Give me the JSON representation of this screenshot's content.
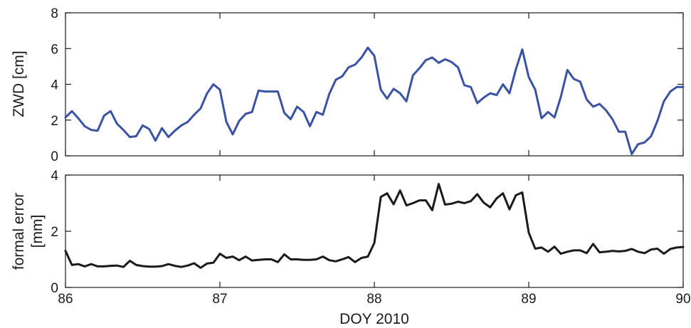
{
  "chart_data": [
    {
      "type": "line",
      "ylabel": "ZWD [cm]",
      "xlabel": "",
      "xlim": [
        86,
        90
      ],
      "ylim": [
        0,
        8
      ],
      "xticks": [
        86,
        87,
        88,
        89,
        90
      ],
      "xtick_labels_visible": false,
      "yticks": [
        "0",
        "2",
        "4",
        "6",
        "8"
      ],
      "grid": false,
      "color": "#3a52a4",
      "series": [
        {
          "x": [
            86.0,
            86.042,
            86.083,
            86.125,
            86.167,
            86.208,
            86.25,
            86.292,
            86.333,
            86.375,
            86.417,
            86.458,
            86.5,
            86.542,
            86.583,
            86.625,
            86.667,
            86.708,
            86.75,
            86.792,
            86.833,
            86.875,
            86.917,
            86.958,
            87.0,
            87.042,
            87.083,
            87.125,
            87.167,
            87.208,
            87.25,
            87.292,
            87.333,
            87.375,
            87.417,
            87.458,
            87.5,
            87.542,
            87.583,
            87.625,
            87.667,
            87.708,
            87.75,
            87.792,
            87.833,
            87.875,
            87.917,
            87.958,
            88.0,
            88.042,
            88.083,
            88.125,
            88.167,
            88.208,
            88.25,
            88.292,
            88.333,
            88.375,
            88.417,
            88.458,
            88.5,
            88.542,
            88.583,
            88.625,
            88.667,
            88.708,
            88.75,
            88.792,
            88.833,
            88.875,
            88.917,
            88.958,
            89.0,
            89.042,
            89.083,
            89.125,
            89.167,
            89.208,
            89.25,
            89.292,
            89.333,
            89.375,
            89.417,
            89.458,
            89.5,
            89.542,
            89.583,
            89.625,
            89.667,
            89.708,
            89.75,
            89.792,
            89.833,
            89.875,
            89.917,
            89.958,
            90.0
          ],
          "values": [
            2.15,
            2.5,
            2.1,
            1.65,
            1.45,
            1.4,
            2.25,
            2.5,
            1.8,
            1.45,
            1.05,
            1.1,
            1.7,
            1.5,
            0.85,
            1.55,
            1.05,
            1.4,
            1.7,
            1.9,
            2.3,
            2.65,
            3.5,
            4.0,
            3.7,
            1.9,
            1.2,
            1.95,
            2.35,
            2.45,
            3.65,
            3.6,
            3.6,
            3.6,
            2.4,
            2.05,
            2.75,
            2.45,
            1.65,
            2.45,
            2.3,
            3.45,
            4.25,
            4.45,
            4.95,
            5.1,
            5.5,
            6.05,
            5.6,
            3.7,
            3.2,
            3.75,
            3.5,
            3.05,
            4.5,
            4.9,
            5.35,
            5.5,
            5.2,
            5.4,
            5.25,
            4.95,
            3.95,
            3.85,
            2.95,
            3.25,
            3.5,
            3.4,
            4.0,
            3.5,
            4.85,
            5.95,
            4.4,
            3.7,
            2.1,
            2.45,
            2.15,
            3.3,
            4.8,
            4.3,
            4.15,
            3.15,
            2.75,
            2.9,
            2.55,
            2.05,
            1.35,
            1.35,
            0.1,
            0.65,
            0.75,
            1.1,
            1.95,
            3.05,
            3.6,
            3.85,
            3.85
          ]
        }
      ]
    },
    {
      "type": "line",
      "ylabel_lines": [
        "formal error",
        "[mm]"
      ],
      "xlabel": "DOY 2010",
      "xlim": [
        86,
        90
      ],
      "ylim": [
        0,
        4
      ],
      "xticks": [
        "86",
        "87",
        "88",
        "89",
        "90"
      ],
      "yticks": [
        "0",
        "2",
        "4"
      ],
      "grid": false,
      "color": "#1a1a1a",
      "series": [
        {
          "x": [
            86.0,
            86.042,
            86.083,
            86.125,
            86.167,
            86.208,
            86.25,
            86.292,
            86.333,
            86.375,
            86.417,
            86.458,
            86.5,
            86.542,
            86.583,
            86.625,
            86.667,
            86.708,
            86.75,
            86.792,
            86.833,
            86.875,
            86.917,
            86.958,
            87.0,
            87.042,
            87.083,
            87.125,
            87.167,
            87.208,
            87.25,
            87.292,
            87.333,
            87.375,
            87.417,
            87.458,
            87.5,
            87.542,
            87.583,
            87.625,
            87.667,
            87.708,
            87.75,
            87.792,
            87.833,
            87.875,
            87.917,
            87.958,
            88.0,
            88.042,
            88.083,
            88.125,
            88.167,
            88.208,
            88.25,
            88.292,
            88.333,
            88.375,
            88.417,
            88.458,
            88.5,
            88.542,
            88.583,
            88.625,
            88.667,
            88.708,
            88.75,
            88.792,
            88.833,
            88.875,
            88.917,
            88.958,
            89.0,
            89.042,
            89.083,
            89.125,
            89.167,
            89.208,
            89.25,
            89.292,
            89.333,
            89.375,
            89.417,
            89.458,
            89.5,
            89.542,
            89.583,
            89.625,
            89.667,
            89.708,
            89.75,
            89.792,
            89.833,
            89.875,
            89.917,
            89.958,
            90.0
          ],
          "values": [
            1.3,
            0.8,
            0.83,
            0.75,
            0.83,
            0.75,
            0.75,
            0.77,
            0.78,
            0.73,
            0.95,
            0.8,
            0.76,
            0.74,
            0.74,
            0.76,
            0.83,
            0.77,
            0.73,
            0.78,
            0.86,
            0.7,
            0.85,
            0.88,
            1.2,
            1.05,
            1.1,
            0.97,
            1.1,
            0.96,
            0.98,
            1.0,
            1.0,
            0.9,
            1.18,
            1.0,
            1.0,
            0.98,
            0.98,
            1.0,
            1.1,
            0.97,
            0.93,
            1.0,
            1.08,
            0.9,
            1.05,
            1.1,
            1.58,
            3.22,
            3.35,
            2.96,
            3.45,
            2.92,
            3.0,
            3.1,
            3.1,
            2.75,
            3.68,
            2.95,
            2.98,
            3.05,
            3.0,
            3.07,
            3.32,
            3.02,
            2.85,
            3.17,
            3.35,
            2.78,
            3.28,
            3.38,
            1.95,
            1.38,
            1.42,
            1.27,
            1.45,
            1.2,
            1.27,
            1.32,
            1.32,
            1.22,
            1.55,
            1.25,
            1.27,
            1.3,
            1.28,
            1.3,
            1.37,
            1.27,
            1.22,
            1.35,
            1.38,
            1.2,
            1.37,
            1.42,
            1.44
          ]
        }
      ]
    }
  ]
}
